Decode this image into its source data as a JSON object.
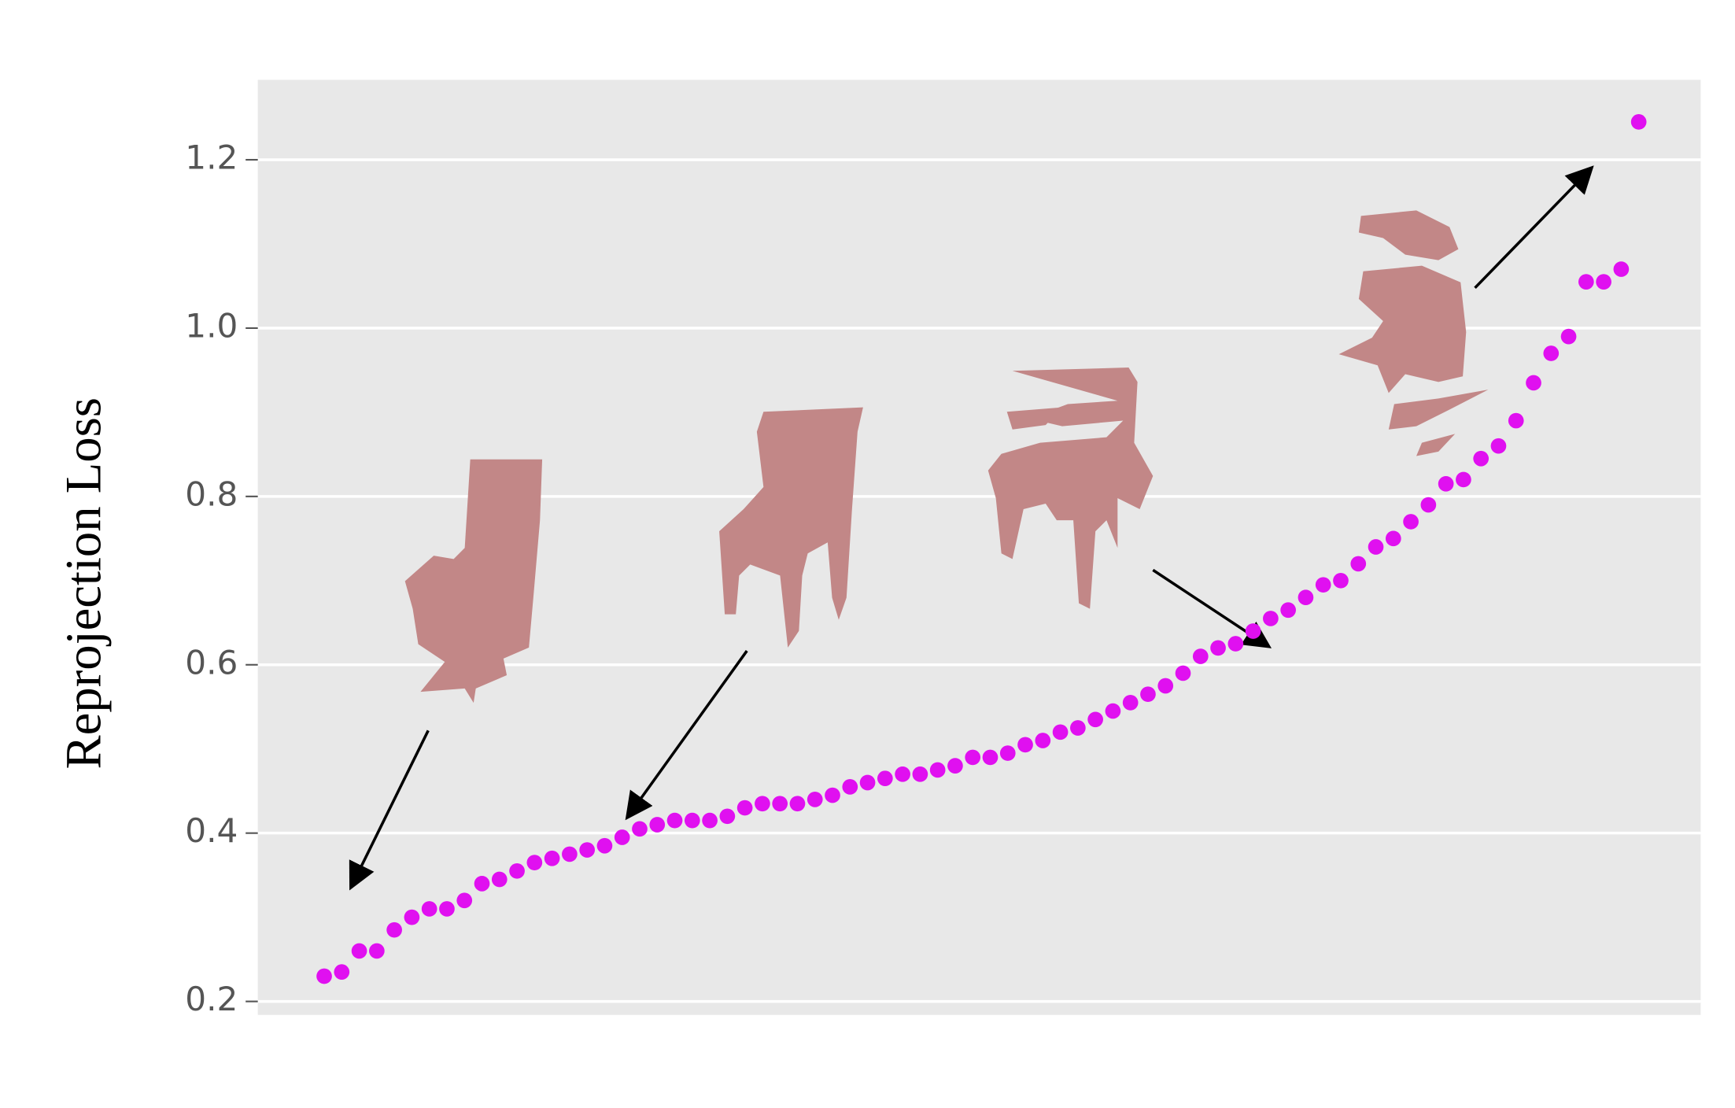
{
  "chart_data": {
    "type": "scatter",
    "ylabel": "Reprojection Loss",
    "color": "#e010f0",
    "values": [
      0.23,
      0.235,
      0.26,
      0.26,
      0.285,
      0.3,
      0.31,
      0.31,
      0.32,
      0.34,
      0.345,
      0.355,
      0.365,
      0.37,
      0.375,
      0.38,
      0.385,
      0.395,
      0.405,
      0.41,
      0.415,
      0.415,
      0.415,
      0.42,
      0.43,
      0.435,
      0.435,
      0.435,
      0.44,
      0.445,
      0.455,
      0.46,
      0.465,
      0.47,
      0.47,
      0.475,
      0.48,
      0.49,
      0.49,
      0.495,
      0.505,
      0.51,
      0.52,
      0.525,
      0.535,
      0.545,
      0.555,
      0.565,
      0.575,
      0.59,
      0.61,
      0.62,
      0.625,
      0.64,
      0.655,
      0.665,
      0.68,
      0.695,
      0.7,
      0.72,
      0.74,
      0.75,
      0.77,
      0.79,
      0.815,
      0.82,
      0.845,
      0.86,
      0.89,
      0.935,
      0.97,
      0.99,
      1.055,
      1.055,
      1.07,
      1.245
    ],
    "ylim": [
      0.184,
      1.295
    ],
    "yticks": [
      0.2,
      0.4,
      0.6,
      0.8,
      {
        "value": 1,
        "label": "1.0"
      },
      1.2
    ],
    "grid": true
  }
}
